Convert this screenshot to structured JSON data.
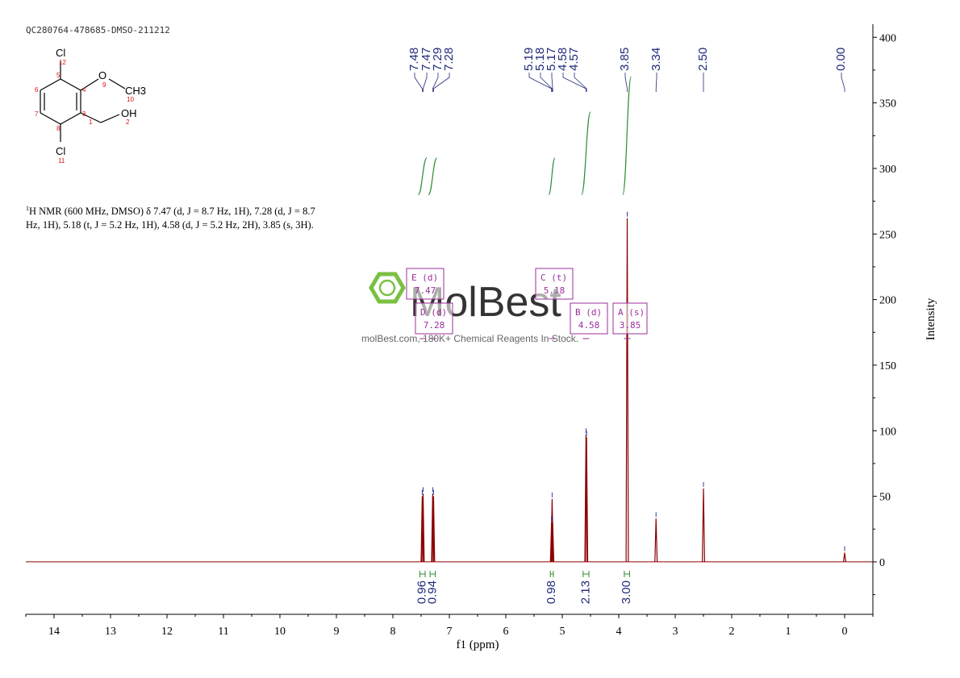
{
  "sample_id": "QC280764-478685-DMSO-211212",
  "description": {
    "nucleus_sup": "1",
    "text": "H NMR (600 MHz, DMSO) δ 7.47 (d, J = 8.7 Hz, 1H), 7.28 (d, J = 8.7 Hz, 1H), 5.18 (t, J = 5.2 Hz, 1H), 4.58 (d, J = 5.2 Hz, 2H), 3.85 (s, 3H)."
  },
  "structure": {
    "atoms": [
      {
        "label": "Cl",
        "num": "12"
      },
      {
        "label": "O",
        "num": "9"
      },
      {
        "label": "CH3",
        "num": "10"
      },
      {
        "label": "OH",
        "num": "2"
      },
      {
        "label": "Cl",
        "num": "11"
      }
    ],
    "ring_numbers": [
      "5",
      "4",
      "3",
      "8",
      "7",
      "6",
      "1"
    ]
  },
  "watermark": {
    "brand": "MolBest",
    "tagline": "molBest.com, 180K+ Chemical Reagents In Stock."
  },
  "colors": {
    "spectrum": "#8b0000",
    "peak_labels": "#1f2a7a",
    "integral": "#2e8b2e",
    "multiplet_box": "#9b2f9b",
    "watermark": "#7ac143"
  },
  "chart_data": {
    "type": "line",
    "xlabel": "f1 (ppm)",
    "ylabel": "Intensity",
    "x_reversed": true,
    "xlim": [
      -0.5,
      14.5
    ],
    "ylim": [
      -40,
      410
    ],
    "x_ticks": [
      14,
      13,
      12,
      11,
      10,
      9,
      8,
      7,
      6,
      5,
      4,
      3,
      2,
      1,
      0
    ],
    "y_ticks": [
      0,
      50,
      100,
      150,
      200,
      250,
      300,
      350,
      400
    ],
    "peaks": [
      {
        "ppm": 7.48,
        "height": 50
      },
      {
        "ppm": 7.465,
        "height": 52
      },
      {
        "ppm": 7.295,
        "height": 52
      },
      {
        "ppm": 7.28,
        "height": 50
      },
      {
        "ppm": 5.19,
        "height": 30
      },
      {
        "ppm": 5.18,
        "height": 48
      },
      {
        "ppm": 5.17,
        "height": 30
      },
      {
        "ppm": 4.58,
        "height": 97
      },
      {
        "ppm": 4.57,
        "height": 95
      },
      {
        "ppm": 3.85,
        "height": 262
      },
      {
        "ppm": 3.34,
        "height": 33
      },
      {
        "ppm": 2.5,
        "height": 56
      },
      {
        "ppm": 0.0,
        "height": 7
      }
    ],
    "peak_labels": [
      "7.48",
      "7.47",
      "7.29",
      "7.28",
      "5.19",
      "5.18",
      "5.17",
      "4.58",
      "4.57",
      "3.85",
      "3.34",
      "2.50",
      "0.00"
    ],
    "integrals": [
      {
        "from": 7.55,
        "to": 7.4,
        "value": "0.96",
        "top": 308,
        "bottom": 280
      },
      {
        "from": 7.37,
        "to": 7.22,
        "value": "0.94",
        "top": 308,
        "bottom": 280
      },
      {
        "from": 5.24,
        "to": 5.13,
        "value": "0.98",
        "top": 308,
        "bottom": 280
      },
      {
        "from": 4.66,
        "to": 4.5,
        "value": "2.13",
        "top": 343,
        "bottom": 280
      },
      {
        "from": 3.93,
        "to": 3.78,
        "value": "3.00",
        "top": 370,
        "bottom": 280
      }
    ],
    "multiplets": [
      {
        "id": "E",
        "type": "d",
        "shift": "7.47"
      },
      {
        "id": "D",
        "type": "d",
        "shift": "7.28"
      },
      {
        "id": "C",
        "type": "t",
        "shift": "5.18"
      },
      {
        "id": "B",
        "type": "d",
        "shift": "4.58"
      },
      {
        "id": "A",
        "type": "s",
        "shift": "3.85"
      }
    ]
  }
}
